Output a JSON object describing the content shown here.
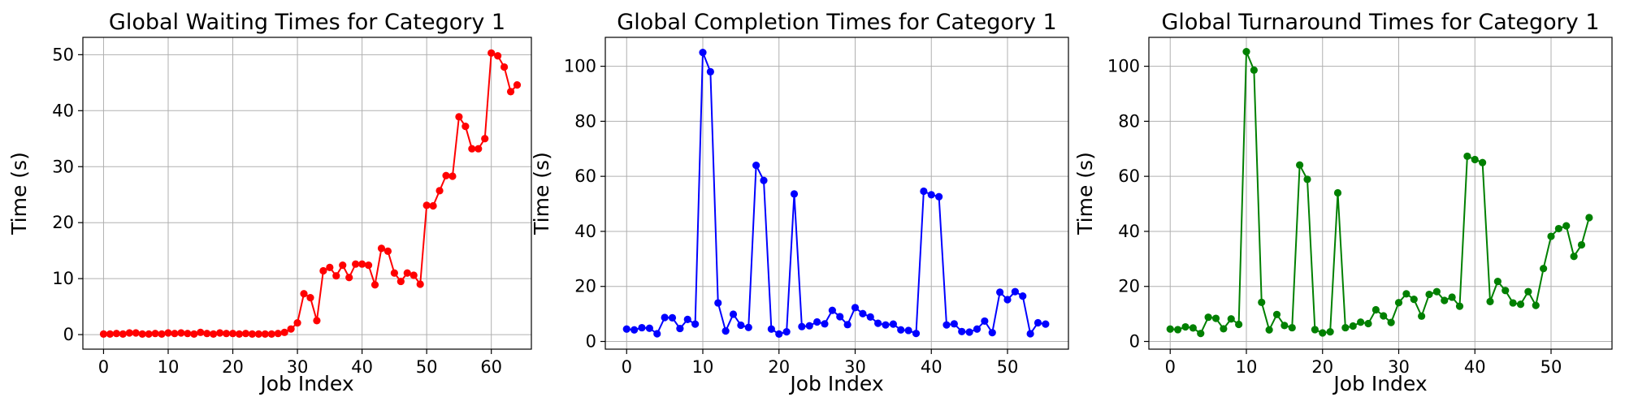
{
  "chart_data": [
    {
      "type": "line",
      "title": "Global Waiting Times for Category 1",
      "xlabel": "Job Index",
      "ylabel": "Time (s)",
      "xlim": [
        -3.2,
        66.2
      ],
      "ylim": [
        -2.6,
        53.1
      ],
      "xticks": [
        0,
        10,
        20,
        30,
        40,
        50,
        60
      ],
      "yticks": [
        0,
        10,
        20,
        30,
        40,
        50
      ],
      "grid": true,
      "color": "#ff0000",
      "x": [
        0,
        1,
        2,
        3,
        4,
        5,
        6,
        7,
        8,
        9,
        10,
        11,
        12,
        13,
        14,
        15,
        16,
        17,
        18,
        19,
        20,
        21,
        22,
        23,
        24,
        25,
        26,
        27,
        28,
        29,
        30,
        31,
        32,
        33,
        34,
        35,
        36,
        37,
        38,
        39,
        40,
        41,
        42,
        43,
        44,
        45,
        46,
        47,
        48,
        49,
        50,
        51,
        52,
        53,
        54,
        55,
        56,
        57,
        58,
        59,
        60,
        61,
        62,
        63,
        64
      ],
      "y": [
        0.1,
        0.1,
        0.2,
        0.1,
        0.3,
        0.3,
        0.1,
        0.1,
        0.2,
        0.1,
        0.3,
        0.2,
        0.3,
        0.2,
        0.1,
        0.4,
        0.2,
        0.1,
        0.3,
        0.2,
        0.2,
        0.1,
        0.2,
        0.1,
        0.1,
        0.1,
        0.1,
        0.2,
        0.4,
        1.0,
        2.1,
        7.3,
        6.6,
        2.5,
        11.4,
        12.0,
        10.5,
        12.4,
        10.2,
        12.6,
        12.6,
        12.4,
        8.9,
        15.4,
        14.9,
        11.0,
        9.5,
        11.0,
        10.6,
        9.0,
        23.1,
        23.0,
        25.7,
        28.4,
        28.3,
        38.9,
        37.2,
        33.2,
        33.2,
        35.0,
        50.3,
        49.8,
        47.8,
        43.4,
        44.6
      ]
    },
    {
      "type": "line",
      "title": "Global Completion Times for Category 1",
      "xlabel": "Job Index",
      "ylabel": "Time (s)",
      "xlim": [
        -2.8,
        58.0
      ],
      "ylim": [
        -2.8,
        110.5
      ],
      "xticks": [
        0,
        10,
        20,
        30,
        40,
        50
      ],
      "yticks": [
        0,
        20,
        40,
        60,
        80,
        100
      ],
      "grid": true,
      "color": "#0000ff",
      "x": [
        0,
        1,
        2,
        3,
        4,
        5,
        6,
        7,
        8,
        9,
        10,
        11,
        12,
        13,
        14,
        15,
        16,
        17,
        18,
        19,
        20,
        21,
        22,
        23,
        24,
        25,
        26,
        27,
        28,
        29,
        30,
        31,
        32,
        33,
        34,
        35,
        36,
        37,
        38,
        39,
        40,
        41,
        42,
        43,
        44,
        45,
        46,
        47,
        48,
        49,
        50,
        51,
        52,
        53,
        54,
        55
      ],
      "y": [
        4.5,
        4.2,
        5.0,
        4.8,
        2.8,
        8.7,
        8.6,
        4.7,
        8.0,
        6.3,
        105.0,
        98.0,
        14.0,
        3.8,
        9.9,
        5.9,
        5.1,
        64.0,
        58.5,
        4.5,
        2.7,
        3.5,
        53.6,
        5.4,
        5.7,
        7.1,
        6.4,
        11.3,
        9.0,
        6.1,
        12.3,
        10.1,
        8.9,
        6.6,
        6.0,
        6.3,
        4.2,
        4.0,
        2.9,
        54.6,
        53.3,
        52.6,
        6.0,
        6.4,
        3.6,
        3.4,
        4.5,
        7.4,
        3.2,
        17.9,
        15.2,
        18.1,
        16.5,
        2.8,
        6.8,
        6.3
      ]
    },
    {
      "type": "line",
      "title": "Global Turnaround Times for Category 1",
      "xlabel": "Job Index",
      "ylabel": "Time (s)",
      "xlim": [
        -2.8,
        58.0
      ],
      "ylim": [
        -2.8,
        110.5
      ],
      "xticks": [
        0,
        10,
        20,
        30,
        40,
        50
      ],
      "yticks": [
        0,
        20,
        40,
        60,
        80,
        100
      ],
      "grid": true,
      "color": "#008000",
      "x": [
        0,
        1,
        2,
        3,
        4,
        5,
        6,
        7,
        8,
        9,
        10,
        11,
        12,
        13,
        14,
        15,
        16,
        17,
        18,
        19,
        20,
        21,
        22,
        23,
        24,
        25,
        26,
        27,
        28,
        29,
        30,
        31,
        32,
        33,
        34,
        35,
        36,
        37,
        38,
        39,
        40,
        41,
        42,
        43,
        44,
        45,
        46,
        47,
        48,
        49,
        50,
        51,
        52,
        53,
        54,
        55
      ],
      "y": [
        4.5,
        4.3,
        5.3,
        4.9,
        2.9,
        8.8,
        8.4,
        4.6,
        8.2,
        6.2,
        105.3,
        98.6,
        14.2,
        4.2,
        9.8,
        5.8,
        5.0,
        64.1,
        58.9,
        4.3,
        3.1,
        3.5,
        54.0,
        5.0,
        5.6,
        7.0,
        6.5,
        11.5,
        9.3,
        6.9,
        14.1,
        17.3,
        15.3,
        9.2,
        17.1,
        18.1,
        14.9,
        16.1,
        12.8,
        67.3,
        66.1,
        65.0,
        14.5,
        21.8,
        18.5,
        14.0,
        13.5,
        18.1,
        13.1,
        26.5,
        38.2,
        41.0,
        42.0,
        30.9,
        35.1,
        45.0
      ]
    }
  ]
}
